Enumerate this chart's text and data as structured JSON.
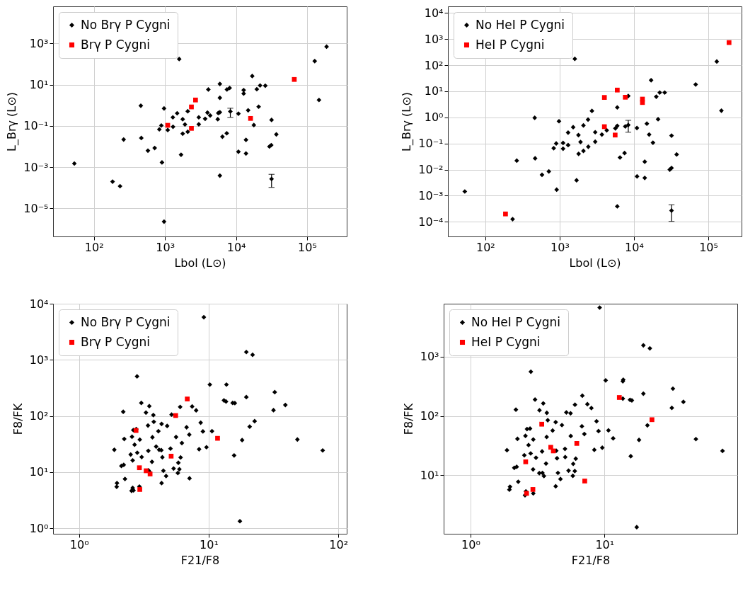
{
  "chart_data": [
    {
      "type": "scatter",
      "xlabel": "Lbol (L⊙)",
      "ylabel": "L_Brγ (L⊙)",
      "log": "xy",
      "grid": true,
      "legend": "top left",
      "xlim": [
        26.6,
        361000
      ],
      "ylim": [
        4.4e-07,
        62000
      ],
      "xticks": [
        {
          "value": 100,
          "label": "10²"
        },
        {
          "value": 1000,
          "label": "10³"
        },
        {
          "value": 10000,
          "label": "10⁴"
        },
        {
          "value": 100000,
          "label": "10⁵"
        }
      ],
      "yticks": [
        {
          "value": 1e-05,
          "label": "10⁻⁵"
        },
        {
          "value": 0.001,
          "label": "10⁻³"
        },
        {
          "value": 0.1,
          "label": "10⁻¹"
        },
        {
          "value": 10,
          "label": "10¹"
        },
        {
          "value": 1000,
          "label": "10³"
        }
      ],
      "series": [
        {
          "name": "No Brγ P Cygni",
          "color": "#000000",
          "marker": "diamond",
          "x": [
            8310,
            31600,
            53,
            183,
            233,
            262,
            457,
            464,
            575,
            716,
            907,
            832,
            888,
            970,
            970,
            1093,
            1297,
            1290,
            1483,
            1585,
            1775,
            1775,
            1683,
            1910,
            2090,
            2090,
            2990,
            2990,
            3675,
            3960,
            4075,
            4325,
            5530,
            5620,
            5920,
            5920,
            5920,
            5920,
            6430,
            7400,
            7450,
            8130,
            10800,
            10800,
            12800,
            12800,
            13800,
            13800,
            14800,
            16900,
            17800,
            19600,
            20800,
            21800,
            25800,
            29500,
            31300,
            31600,
            36900,
            128000,
            147000,
            188000
          ],
          "values": [
            0.5,
            0.00027,
            0.0015,
            0.0002,
            0.00012,
            0.022,
            0.95,
            0.026,
            0.0063,
            0.0085,
            0.0017,
            0.068,
            0.105,
            0.7,
            2.3e-06,
            0.063,
            0.091,
            0.26,
            0.41,
            174,
            0.21,
            0.042,
            0.004,
            0.117,
            0.51,
            0.052,
            0.26,
            0.12,
            0.22,
            0.44,
            5.8,
            0.32,
            0.21,
            0.42,
            0.46,
            10.8,
            2.3,
            0.00039,
            0.03,
            0.044,
            5.8,
            6.9,
            0.39,
            0.0056,
            5.4,
            3.7,
            0.021,
            0.0046,
            0.57,
            26,
            0.11,
            6.0,
            0.85,
            9.1,
            8.9,
            0.01,
            0.0117,
            0.195,
            0.039,
            138,
            1.8,
            690
          ],
          "errors": [
            [
              0.26,
              0.72
            ],
            [
              0.000105,
              0.00045
            ],
            null,
            null,
            null,
            null,
            null,
            null,
            null,
            null,
            null,
            null,
            null,
            null,
            null,
            null,
            null,
            null,
            null,
            null,
            null,
            null,
            null,
            null,
            null,
            null,
            null,
            null,
            null,
            null,
            null,
            null,
            null,
            null,
            null,
            null,
            null,
            null,
            null,
            null,
            null,
            null,
            null,
            null,
            null,
            null,
            null,
            null,
            null,
            null,
            null,
            null,
            null,
            null,
            null,
            null,
            null,
            null,
            null,
            null,
            null,
            null
          ]
        },
        {
          "name": "Brγ P Cygni",
          "color": "#ff0000",
          "marker": "square",
          "x": [
            1093,
            2355,
            2690,
            2355,
            16000,
            66000
          ],
          "values": [
            0.107,
            0.83,
            1.8,
            0.076,
            0.23,
            17.8
          ]
        }
      ]
    },
    {
      "type": "scatter",
      "xlabel": "Lbol (L⊙)",
      "ylabel": "L_Brγ (L⊙)",
      "log": "xy",
      "grid": true,
      "legend": "top left",
      "xlim": [
        31.4,
        280000
      ],
      "ylim": [
        2.75e-05,
        17800
      ],
      "xticks": [
        {
          "value": 100,
          "label": "10²"
        },
        {
          "value": 1000,
          "label": "10³"
        },
        {
          "value": 10000,
          "label": "10⁴"
        },
        {
          "value": 100000,
          "label": "10⁵"
        }
      ],
      "yticks": [
        {
          "value": 0.0001,
          "label": "10⁻⁴"
        },
        {
          "value": 0.001,
          "label": "10⁻³"
        },
        {
          "value": 0.01,
          "label": "10⁻²"
        },
        {
          "value": 0.1,
          "label": "10⁻¹"
        },
        {
          "value": 1,
          "label": "10⁰"
        },
        {
          "value": 10,
          "label": "10¹"
        },
        {
          "value": 100,
          "label": "10²"
        },
        {
          "value": 1000,
          "label": "10³"
        },
        {
          "value": 10000,
          "label": "10⁴"
        }
      ],
      "series": [
        {
          "name": "No HeI P Cygni",
          "color": "#000000",
          "marker": "diamond",
          "x": [
            8380,
            32000,
            53,
            233,
            265,
            462,
            468,
            579,
            716,
            832,
            899,
            912,
            980,
            1112,
            1112,
            1300,
            1300,
            1520,
            1600,
            1690,
            1790,
            1800,
            1910,
            2090,
            2090,
            2410,
            2430,
            2720,
            3010,
            3010,
            3700,
            4300,
            5620,
            5960,
            5960,
            5960,
            6480,
            7470,
            7640,
            8380,
            10960,
            11000,
            13960,
            13960,
            14900,
            16000,
            17000,
            18000,
            19950,
            21100,
            22200,
            25900,
            30300,
            32000,
            32000,
            37500,
            67600,
            130000,
            150000
          ],
          "values": [
            0.51,
            0.00027,
            0.00145,
            0.000126,
            0.022,
            0.96,
            0.027,
            0.0063,
            0.0085,
            0.066,
            0.1,
            0.0017,
            0.71,
            0.063,
            0.105,
            0.087,
            0.26,
            0.42,
            174,
            0.0039,
            0.21,
            0.04,
            0.114,
            0.49,
            0.052,
            0.82,
            0.075,
            1.77,
            0.27,
            0.117,
            0.22,
            0.32,
            0.38,
            0.47,
            2.4,
            0.00039,
            0.029,
            0.043,
            0.45,
            6.6,
            0.39,
            0.0055,
            0.02,
            0.0048,
            0.575,
            0.22,
            26.5,
            0.107,
            6.2,
            0.85,
            8.9,
            8.9,
            0.01,
            0.0115,
            0.2,
            0.038,
            18.2,
            137,
            1.8
          ],
          "errors": [
            [
              0.27,
              0.77
            ],
            [
              0.000104,
              0.00045
            ],
            null,
            null,
            null,
            null,
            null,
            null,
            null,
            null,
            null,
            null,
            null,
            null,
            null,
            null,
            null,
            null,
            null,
            null,
            null,
            null,
            null,
            null,
            null,
            null,
            null,
            null,
            null,
            null,
            null,
            null,
            null,
            null,
            null,
            null,
            null,
            null,
            null,
            null,
            null,
            null,
            null,
            null,
            null,
            null,
            null,
            null,
            null,
            null,
            null,
            null,
            null,
            null,
            null,
            null,
            null,
            null,
            null
          ]
        },
        {
          "name": "HeI P Cygni",
          "color": "#ff0000",
          "marker": "square",
          "x": [
            187,
            4000,
            4000,
            5580,
            5960,
            7640,
            13000,
            13000,
            190000
          ],
          "values": [
            0.0002,
            5.8,
            0.44,
            0.21,
            11.1,
            5.9,
            5.0,
            3.7,
            730
          ]
        }
      ]
    },
    {
      "type": "scatter",
      "xlabel": "F21/F8",
      "ylabel": "F8/FK",
      "log": "xy",
      "grid": true,
      "legend": "top left",
      "xlim": [
        0.63,
        116
      ],
      "ylim": [
        0.8,
        10000
      ],
      "xticks": [
        {
          "value": 1,
          "label": "10⁰"
        },
        {
          "value": 10,
          "label": "10¹"
        },
        {
          "value": 100,
          "label": "10²"
        }
      ],
      "yticks": [
        {
          "value": 1,
          "label": "10⁰"
        },
        {
          "value": 10,
          "label": "10¹"
        },
        {
          "value": 100,
          "label": "10²"
        },
        {
          "value": 1000,
          "label": "10³"
        },
        {
          "value": 10000,
          "label": "10⁴"
        }
      ],
      "series": [
        {
          "name": "No Brγ P Cygni",
          "color": "#000000",
          "marker": "diamond",
          "x": [
            9.17,
            19.5,
            21.8,
            2.8,
            10.2,
            13.7,
            32.3,
            19.5,
            39.0,
            13.1,
            13.6,
            15.3,
            15.9,
            31.6,
            3.02,
            3.48,
            6.02,
            7.45,
            8.0,
            2.19,
            3.28,
            3.74,
            5.17,
            22.6,
            3.77,
            4.33,
            3.4,
            4.78,
            6.75,
            8.67,
            20.7,
            2.62,
            2.76,
            4.09,
            9.02,
            10.6,
            2.23,
            2.56,
            2.94,
            3.68,
            5.6,
            7.08,
            6.21,
            18.1,
            48.3,
            1.87,
            2.68,
            3.93,
            4.14,
            4.31,
            5.07,
            3.42,
            8.43,
            9.61,
            75.7,
            2.5,
            2.81,
            3.04,
            4.39,
            6.07,
            2.59,
            3.65,
            15.7,
            5.83,
            2.12,
            2.21,
            5.36,
            5.94,
            3.42,
            3.47,
            4.47,
            5.78,
            4.69,
            7.11,
            2.26,
            1.96,
            1.95,
            4.33,
            2.92,
            2.59,
            2.54,
            2.63,
            17.4
          ],
          "values": [
            5750,
            1380,
            1230,
            508,
            363,
            363,
            266,
            217,
            157,
            190,
            181,
            171,
            170,
            127,
            171,
            150,
            145,
            148,
            126,
            119,
            115,
            104,
            106,
            81,
            79,
            72.4,
            67.8,
            66.5,
            63,
            76,
            64.7,
            56.2,
            58.4,
            53.7,
            53.1,
            53.7,
            39,
            42.7,
            38,
            41.9,
            42.3,
            46.6,
            33,
            37.3,
            38.2,
            25.1,
            30.8,
            28.6,
            25.1,
            24.6,
            26.3,
            24,
            25.6,
            27.8,
            24.4,
            20.6,
            22.2,
            18.6,
            18.4,
            18.3,
            16.2,
            15.3,
            19.9,
            14.7,
            12.9,
            13.5,
            11.6,
            11.3,
            10.8,
            10.4,
            10.6,
            9.66,
            8.55,
            7.78,
            7.57,
            6.39,
            5.5,
            6.39,
            5.55,
            5.25,
            4.65,
            4.74,
            1.34
          ]
        },
        {
          "name": "Brγ P Cygni",
          "color": "#ff0000",
          "marker": "square",
          "x": [
            6.83,
            5.56,
            2.75,
            11.7,
            5.13,
            2.92,
            3.29,
            3.53,
            2.94
          ],
          "values": [
            201,
            102,
            55.2,
            40.1,
            19.3,
            12,
            10.6,
            9.3,
            4.92
          ]
        }
      ]
    },
    {
      "type": "scatter",
      "xlabel": "F21/F8",
      "ylabel": "F8/FK",
      "log": "xy",
      "grid": true,
      "legend": "top left",
      "xlim": [
        0.63,
        98
      ],
      "ylim": [
        1.036,
        7800
      ],
      "xticks": [
        {
          "value": 1,
          "label": "10⁰"
        },
        {
          "value": 10,
          "label": "10¹"
        }
      ],
      "yticks": [
        {
          "value": 10,
          "label": "10¹"
        },
        {
          "value": 100,
          "label": "10²"
        },
        {
          "value": 1000,
          "label": "10³"
        }
      ],
      "series": [
        {
          "name": "No HeI P Cygni",
          "color": "#000000",
          "marker": "diamond",
          "x": [
            9.2,
            19.5,
            21.8,
            2.82,
            10.2,
            13.7,
            13.8,
            32.4,
            19.5,
            38.8,
            6.83,
            13.7,
            15.5,
            16,
            31.8,
            3.03,
            3.49,
            6.02,
            7.45,
            7.98,
            2.18,
            3.27,
            3.71,
            5.19,
            5.58,
            8.72,
            3.77,
            4.32,
            4.81,
            6.78,
            20.9,
            2.64,
            2.78,
            4.1,
            9.02,
            10.7,
            2.24,
            2.57,
            2.94,
            3.7,
            5.6,
            7.07,
            11.6,
            18.1,
            48.1,
            1.87,
            2.71,
            5.07,
            4.36,
            3.42,
            8.39,
            9.62,
            76,
            2.52,
            2.81,
            3.08,
            4.42,
            5.09,
            6.1,
            3.66,
            5.84,
            15.7,
            2.12,
            2.21,
            5.39,
            6.0,
            2.93,
            3.26,
            3.44,
            3.53,
            4.49,
            5.8,
            4.69,
            2.27,
            1.97,
            1.95,
            4.32,
            2.94,
            2.59,
            2.55,
            17.4
          ],
          "values": [
            6710,
            1550,
            1380,
            557,
            398,
            385,
            408,
            289,
            238,
            173,
            220,
            196,
            187,
            183,
            137,
            189,
            163,
            155,
            158,
            136,
            128,
            125,
            113,
            115,
            111,
            81.4,
            85,
            78.7,
            70.2,
            67.1,
            69.5,
            60.3,
            61.4,
            56.8,
            55.7,
            57.3,
            41.2,
            46.3,
            40.2,
            44.3,
            45.9,
            49.7,
            42,
            39.5,
            40.8,
            26.5,
            32.4,
            27.9,
            26,
            25.3,
            26.9,
            29.2,
            25.8,
            21.8,
            23.4,
            19.8,
            19.4,
            20.3,
            19.1,
            15.8,
            15.6,
            21,
            13.4,
            13.9,
            12,
            11.8,
            12.6,
            10.9,
            11,
            9.73,
            11,
            9.8,
            8.67,
            7.8,
            6.43,
            5.73,
            6.53,
            4.97,
            5.38,
            4.62,
            1.34
          ]
        },
        {
          "name": "HeI P Cygni",
          "color": "#ff0000",
          "marker": "square",
          "x": [
            12.9,
            22.6,
            3.4,
            6.21,
            3.97,
            4.15,
            2.58,
            7.12,
            2.92,
            2.62
          ],
          "values": [
            205,
            86.7,
            72.7,
            34.5,
            29.7,
            25.8,
            16.9,
            8.02,
            5.78,
            4.97
          ]
        }
      ]
    }
  ]
}
